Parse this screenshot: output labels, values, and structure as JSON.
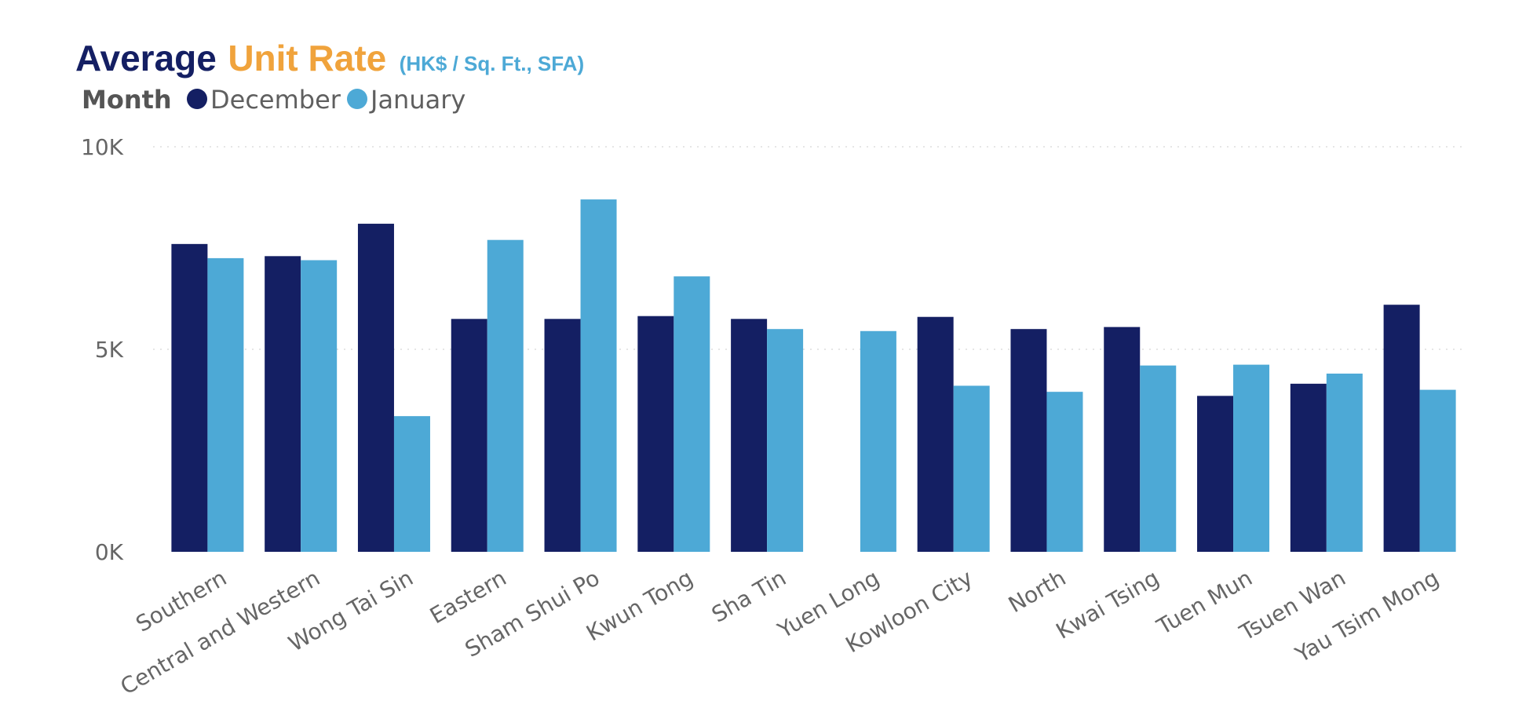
{
  "colors": {
    "title_primary": "#141f63",
    "title_accent": "#f0a33c",
    "title_unit": "#4da9d6",
    "december": "#141f63",
    "january": "#4da9d6",
    "legend_title": "#555555",
    "legend_text": "#5f5f5f",
    "tick_text": "#666666",
    "grid": "#dddddd",
    "background": "#ffffff"
  },
  "chart_data": {
    "type": "bar",
    "title_parts": [
      "Average",
      "Unit Rate",
      "(HK$ / Sq. Ft., SFA)"
    ],
    "legend": {
      "title": "Month",
      "position": "top-left"
    },
    "categories": [
      "Southern",
      "Central and Western",
      "Wong Tai Sin",
      "Eastern",
      "Sham Shui Po",
      "Kwun Tong",
      "Sha Tin",
      "Yuen Long",
      "Kowloon City",
      "North",
      "Kwai Tsing",
      "Tuen Mun",
      "Tsuen Wan",
      "Yau Tsim Mong"
    ],
    "series": [
      {
        "name": "December",
        "values": [
          7600,
          7300,
          8100,
          5750,
          5750,
          5820,
          5750,
          null,
          5800,
          5500,
          5550,
          3850,
          4150,
          6100
        ]
      },
      {
        "name": "January",
        "values": [
          7250,
          7200,
          3350,
          7700,
          8700,
          6800,
          5500,
          5450,
          4100,
          3950,
          4600,
          4620,
          4400,
          4000
        ]
      }
    ],
    "y_ticks": [
      "0K",
      "5K",
      "10K"
    ],
    "y_tick_values": [
      0,
      5000,
      10000
    ],
    "ylim": [
      0,
      10000
    ],
    "grid": true
  }
}
